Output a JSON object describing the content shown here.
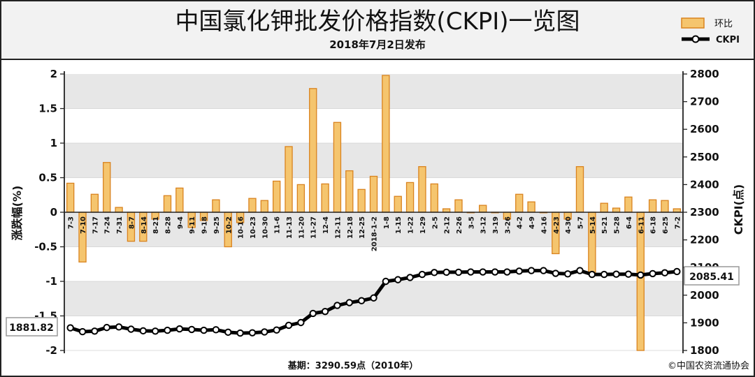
{
  "header": {
    "title": "中国氯化钾批发价格指数(CKPI)一览图",
    "subtitle": "2018年7月2日发布"
  },
  "legend": {
    "bar_label": "环比",
    "line_label": "CKPI"
  },
  "footer": {
    "base_note": "基期：3290.59点（2010年）",
    "copyright": "©中国农资流通协会"
  },
  "callouts": {
    "start_value": "1881.82",
    "end_value": "2085.41"
  },
  "colors": {
    "bar_fill": "#f5c56e",
    "bar_stroke": "#d9831f",
    "line": "#000000",
    "marker_fill": "#ffffff",
    "band": "#e7e7e7"
  },
  "chart_data": {
    "type": "bar",
    "title": "中国氯化钾批发价格指数(CKPI)一览图",
    "categories": [
      "7-3",
      "7-10",
      "7-17",
      "7-24",
      "7-31",
      "8-7",
      "8-14",
      "8-21",
      "8-28",
      "9-4",
      "9-11",
      "9-18",
      "9-25",
      "10-2",
      "10-16",
      "10-23",
      "10-30",
      "11-6",
      "11-13",
      "11-20",
      "11-27",
      "12-4",
      "12-11",
      "12-18",
      "12-25",
      "2018-1-2",
      "1-8",
      "1-15",
      "1-22",
      "1-29",
      "2-5",
      "2-12",
      "2-26",
      "3-5",
      "3-12",
      "3-19",
      "3-26",
      "4-2",
      "4-9",
      "4-16",
      "4-23",
      "4-30",
      "5-7",
      "5-14",
      "5-21",
      "5-28",
      "6-4",
      "6-11",
      "6-18",
      "6-25",
      "7-2"
    ],
    "series": [
      {
        "name": "环比",
        "axis": "left",
        "values": [
          0.42,
          -0.72,
          0.26,
          0.72,
          0.07,
          -0.42,
          -0.42,
          -0.1,
          0.24,
          0.35,
          -0.22,
          -0.12,
          0.18,
          -0.5,
          -0.15,
          0.2,
          0.17,
          0.45,
          0.95,
          0.4,
          1.79,
          0.41,
          1.3,
          0.6,
          0.33,
          0.52,
          1.98,
          0.23,
          0.43,
          0.66,
          0.41,
          0.05,
          0.18,
          0,
          0.1,
          0,
          -0.1,
          0.26,
          0.15,
          0,
          -0.6,
          -0.1,
          0.66,
          -0.9,
          0.13,
          0.06,
          0.22,
          -2.0,
          0.18,
          0.17,
          0.05
        ]
      },
      {
        "name": "CKPI",
        "axis": "right",
        "values": [
          1881.82,
          1868,
          1870,
          1883,
          1885,
          1877,
          1871,
          1870,
          1873,
          1878,
          1876,
          1873,
          1875,
          1866,
          1863,
          1864,
          1867,
          1874,
          1891,
          1901,
          1934,
          1941,
          1963,
          1973,
          1980,
          1990,
          2050,
          2056,
          2064,
          2075,
          2082,
          2083,
          2083,
          2084,
          2084,
          2084,
          2084,
          2087,
          2089,
          2089,
          2079,
          2077,
          2089,
          2075,
          2075,
          2076,
          2076,
          2073,
          2078,
          2081,
          2085.41
        ]
      }
    ],
    "ylim_left": [
      -2,
      2
    ],
    "yticks_left": [
      "-2",
      "-1.5",
      "-1",
      "-0.5",
      "0",
      "0.5",
      "1",
      "1.5",
      "2"
    ],
    "ylim_right": [
      1800,
      2800
    ],
    "yticks_right": [
      "1800",
      "1900",
      "2000",
      "2100",
      "2200",
      "2300",
      "2400",
      "2500",
      "2600",
      "2700",
      "2800"
    ],
    "ylabel_left": "涨跌幅(%)",
    "ylabel_right": "CKPI(点)",
    "legend_position": "top-right",
    "grid": "horizontal alternating bands"
  }
}
